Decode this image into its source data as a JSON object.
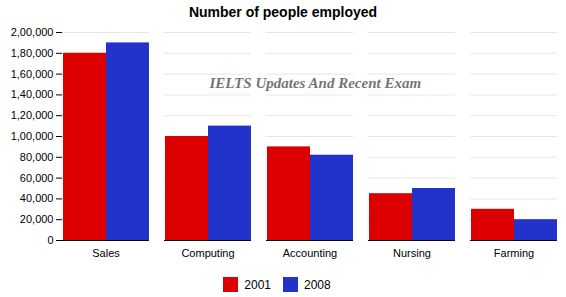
{
  "chart_data": {
    "type": "bar",
    "title": "Number of people employed",
    "categories": [
      "Sales",
      "Computing",
      "Accounting",
      "Nursing",
      "Farming"
    ],
    "series": [
      {
        "name": "2001",
        "color": "#dd0000",
        "values": [
          180000,
          100000,
          90000,
          45000,
          30000
        ]
      },
      {
        "name": "2008",
        "color": "#2233cc",
        "values": [
          190000,
          110000,
          82000,
          50000,
          20000
        ]
      }
    ],
    "ylim": [
      0,
      200000
    ],
    "yticks": [
      0,
      {
        "value": 20000,
        "label": "20,000"
      },
      {
        "value": 40000,
        "label": "40,000"
      },
      {
        "value": 60000,
        "label": "60,000"
      },
      {
        "value": 80000,
        "label": "80,000"
      },
      {
        "value": 100000,
        "label": "1,00,000"
      },
      {
        "value": 120000,
        "label": "1,20,000"
      },
      {
        "value": 140000,
        "label": "1,40,000"
      },
      {
        "value": 160000,
        "label": "1,60,000"
      },
      {
        "value": 180000,
        "label": "1,80,000"
      },
      {
        "value": 200000,
        "label": "2,00,000"
      }
    ],
    "grid": true,
    "legend": "bottom",
    "annotation": "IELTS Updates And Recent Exam"
  }
}
